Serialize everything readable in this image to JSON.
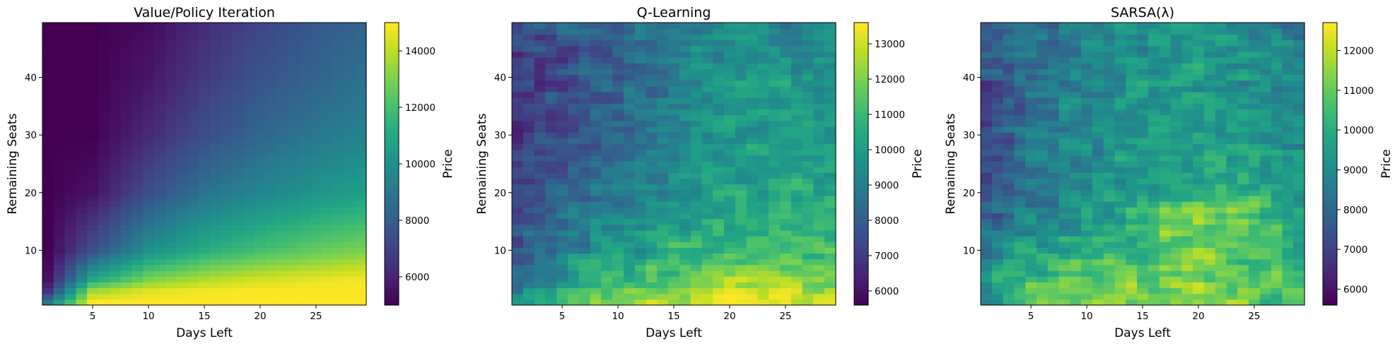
{
  "figure": {
    "panels": [
      {
        "id": "vpi",
        "title": "Value/Policy Iteration",
        "xlabel": "Days Left",
        "ylabel": "Remaining Seats",
        "colorbar_label": "Price",
        "xticks": [
          "5",
          "10",
          "15",
          "20",
          "25"
        ],
        "yticks": [
          "10",
          "20",
          "30",
          "40"
        ],
        "colorbar_ticks": [
          "6000",
          "8000",
          "10000",
          "12000",
          "14000"
        ]
      },
      {
        "id": "ql",
        "title": "Q-Learning",
        "xlabel": "Days Left",
        "ylabel": "Remaining Seats",
        "colorbar_label": "Price",
        "xticks": [
          "5",
          "10",
          "15",
          "20",
          "25"
        ],
        "yticks": [
          "10",
          "20",
          "30",
          "40"
        ],
        "colorbar_ticks": [
          "6000",
          "7000",
          "8000",
          "9000",
          "10000",
          "11000",
          "12000",
          "13000"
        ]
      },
      {
        "id": "sarsa",
        "title": "SARSA(λ)",
        "xlabel": "Days Left",
        "ylabel": "Remaining Seats",
        "colorbar_label": "Price",
        "xticks": [
          "5",
          "10",
          "15",
          "20",
          "25"
        ],
        "yticks": [
          "10",
          "20",
          "30",
          "40"
        ],
        "colorbar_ticks": [
          "6000",
          "7000",
          "8000",
          "9000",
          "10000",
          "11000",
          "12000"
        ]
      }
    ]
  },
  "chart_data": [
    {
      "type": "heatmap",
      "title": "Value/Policy Iteration",
      "xlabel": "Days Left",
      "ylabel": "Remaining Seats",
      "x_range": [
        1,
        29
      ],
      "y_range": [
        1,
        49
      ],
      "colormap": "viridis",
      "colorbar_label": "Price",
      "color_range": [
        5000,
        15000
      ],
      "colorbar_ticks": [
        6000,
        8000,
        10000,
        12000,
        14000
      ],
      "xticks": [
        5,
        10,
        15,
        20,
        25
      ],
      "yticks": [
        10,
        20,
        30,
        40
      ],
      "pattern": "smooth-gradient",
      "value_samples": {
        "x": [
          1,
          5,
          10,
          15,
          20,
          25,
          29
        ],
        "y": [
          1,
          3,
          5,
          10,
          20,
          30,
          40,
          49
        ],
        "z": [
          [
            9000,
            15000,
            15000,
            15000,
            15000,
            15000,
            15000
          ],
          [
            6500,
            13500,
            14500,
            14800,
            15000,
            15000,
            15000
          ],
          [
            5500,
            11000,
            13000,
            13800,
            14300,
            14600,
            14800
          ],
          [
            5000,
            7500,
            10000,
            11200,
            12000,
            12600,
            13000
          ],
          [
            5000,
            5500,
            7400,
            8800,
            9600,
            10200,
            10600
          ],
          [
            5000,
            5000,
            6200,
            7400,
            8300,
            9000,
            9400
          ],
          [
            5000,
            5000,
            5600,
            6700,
            7600,
            8200,
            8700
          ],
          [
            5000,
            5000,
            5300,
            6300,
            7100,
            7800,
            8200
          ]
        ]
      }
    },
    {
      "type": "heatmap",
      "title": "Q-Learning",
      "xlabel": "Days Left",
      "ylabel": "Remaining Seats",
      "x_range": [
        1,
        29
      ],
      "y_range": [
        1,
        49
      ],
      "colormap": "viridis",
      "colorbar_label": "Price",
      "color_range": [
        5600,
        13600
      ],
      "colorbar_ticks": [
        6000,
        7000,
        8000,
        9000,
        10000,
        11000,
        12000,
        13000
      ],
      "xticks": [
        5,
        10,
        15,
        20,
        25
      ],
      "yticks": [
        10,
        20,
        30,
        40
      ],
      "pattern": "noisy",
      "value_samples": {
        "x": [
          1,
          5,
          10,
          15,
          20,
          25,
          29
        ],
        "y": [
          1,
          5,
          10,
          20,
          30,
          40,
          49
        ],
        "z": [
          [
            9500,
            11500,
            12000,
            12500,
            13200,
            13200,
            12600
          ],
          [
            8500,
            10000,
            10800,
            11500,
            12200,
            12300,
            11800
          ],
          [
            7800,
            9000,
            9800,
            10700,
            11000,
            11200,
            11000
          ],
          [
            7200,
            8200,
            8900,
            9700,
            10200,
            10400,
            10300
          ],
          [
            6800,
            7600,
            8200,
            9200,
            9800,
            10000,
            9800
          ],
          [
            6800,
            7400,
            8000,
            9000,
            9800,
            9900,
            9700
          ],
          [
            7600,
            7800,
            8200,
            8800,
            9400,
            9300,
            9200
          ]
        ]
      }
    },
    {
      "type": "heatmap",
      "title": "SARSA(λ)",
      "xlabel": "Days Left",
      "ylabel": "Remaining Seats",
      "x_range": [
        1,
        29
      ],
      "y_range": [
        1,
        49
      ],
      "colormap": "viridis",
      "colorbar_label": "Price",
      "color_range": [
        5600,
        12700
      ],
      "colorbar_ticks": [
        6000,
        7000,
        8000,
        9000,
        10000,
        11000,
        12000
      ],
      "xticks": [
        5,
        10,
        15,
        20,
        25
      ],
      "yticks": [
        10,
        20,
        30,
        40
      ],
      "pattern": "noisy",
      "value_samples": {
        "x": [
          1,
          5,
          10,
          15,
          20,
          25,
          29
        ],
        "y": [
          1,
          5,
          10,
          17,
          20,
          30,
          40,
          49
        ],
        "z": [
          [
            9500,
            10800,
            11200,
            11400,
            11600,
            11200,
            10600
          ],
          [
            9200,
            10400,
            10800,
            11000,
            11400,
            11000,
            10400
          ],
          [
            8600,
            9600,
            10200,
            10600,
            11000,
            10600,
            10000
          ],
          [
            7600,
            8600,
            9400,
            10400,
            11600,
            10800,
            9800
          ],
          [
            7000,
            8200,
            9000,
            9600,
            10200,
            9800,
            9400
          ],
          [
            7200,
            8200,
            9000,
            9400,
            9600,
            9400,
            9000
          ],
          [
            7400,
            8200,
            8800,
            9200,
            9400,
            9200,
            8800
          ],
          [
            7800,
            8400,
            8800,
            9200,
            9400,
            9000,
            8600
          ]
        ]
      }
    }
  ]
}
